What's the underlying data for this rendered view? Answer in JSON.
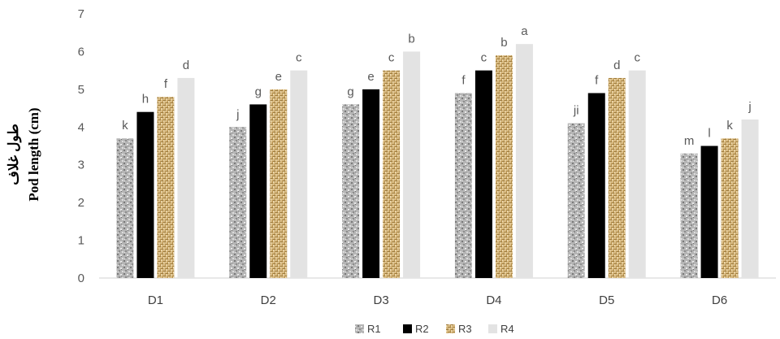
{
  "chart_data": {
    "type": "bar",
    "title": "",
    "ylabel_line1": "طول غلاف",
    "ylabel_line2": "Pod length (cm)",
    "xlabel": "",
    "categories": [
      "D1",
      "D2",
      "D3",
      "D4",
      "D5",
      "D6"
    ],
    "ylim": [
      0,
      7
    ],
    "yticks": [
      0,
      1,
      2,
      3,
      4,
      5,
      6,
      7
    ],
    "grid": false,
    "legend_position": "bottom",
    "series": [
      {
        "name": "R1",
        "values": [
          3.7,
          4.0,
          4.6,
          4.9,
          4.1,
          3.3
        ],
        "labels": [
          "k",
          "j",
          "g",
          "f",
          "ji",
          "m"
        ],
        "pattern": "speckle-gray",
        "color": "#a6a6a6"
      },
      {
        "name": "R2",
        "values": [
          4.4,
          4.6,
          5.0,
          5.5,
          4.9,
          3.5
        ],
        "labels": [
          "h",
          "g",
          "e",
          "c",
          "f",
          "l"
        ],
        "pattern": "solid",
        "color": "#000000"
      },
      {
        "name": "R3",
        "values": [
          4.8,
          5.0,
          5.5,
          5.9,
          5.3,
          3.7
        ],
        "labels": [
          "f",
          "e",
          "c",
          "b",
          "d",
          "k"
        ],
        "pattern": "weave-tan",
        "color": "#c9a96b"
      },
      {
        "name": "R4",
        "values": [
          5.3,
          5.5,
          6.0,
          6.2,
          5.5,
          4.2
        ],
        "labels": [
          "d",
          "c",
          "b",
          "a",
          "c",
          "j"
        ],
        "pattern": "solid",
        "color": "#e3e3e3"
      }
    ]
  }
}
